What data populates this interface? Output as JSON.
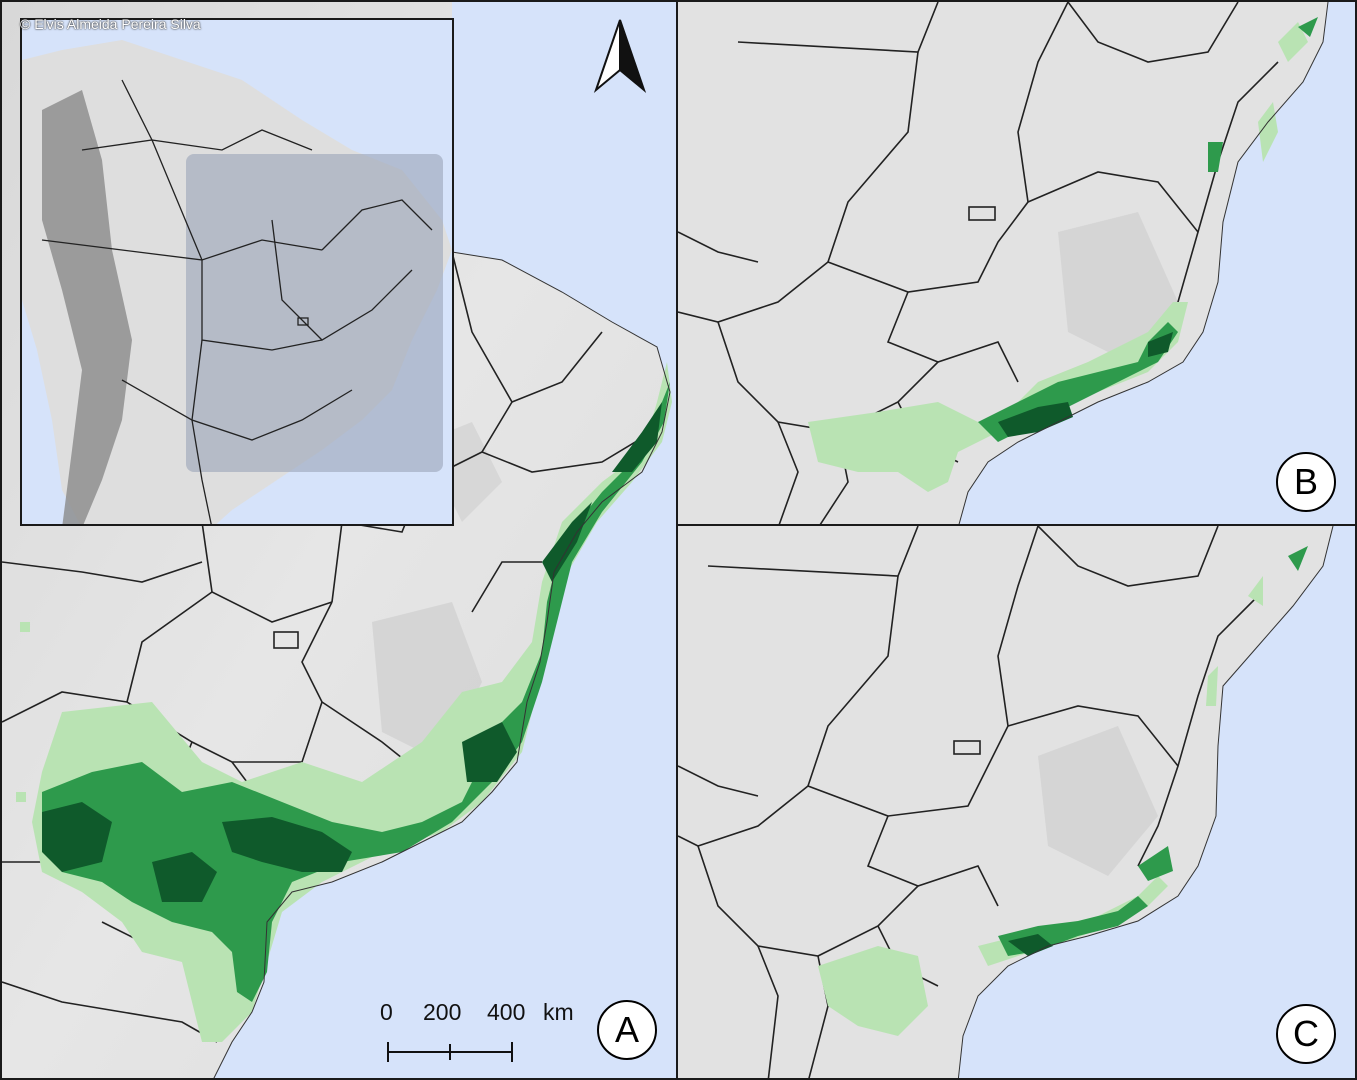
{
  "credit": "© Elvis Almeida Pereira Silva",
  "panels": {
    "a": {
      "label": "A"
    },
    "b": {
      "label": "B"
    },
    "c": {
      "label": "C"
    }
  },
  "scale_bar": {
    "t0": "0",
    "t1": "200",
    "t2": "400",
    "unit": "km"
  },
  "icons": {
    "north_arrow": "north-arrow-icon"
  },
  "colors": {
    "ocean": "#d6e3fa",
    "land": "#e2e2e2",
    "suitability_low": "#b9e3b3",
    "suitability_mid": "#2e9a4c",
    "suitability_high": "#0f5a2b",
    "inset_highlight": "#9aa3b8"
  }
}
